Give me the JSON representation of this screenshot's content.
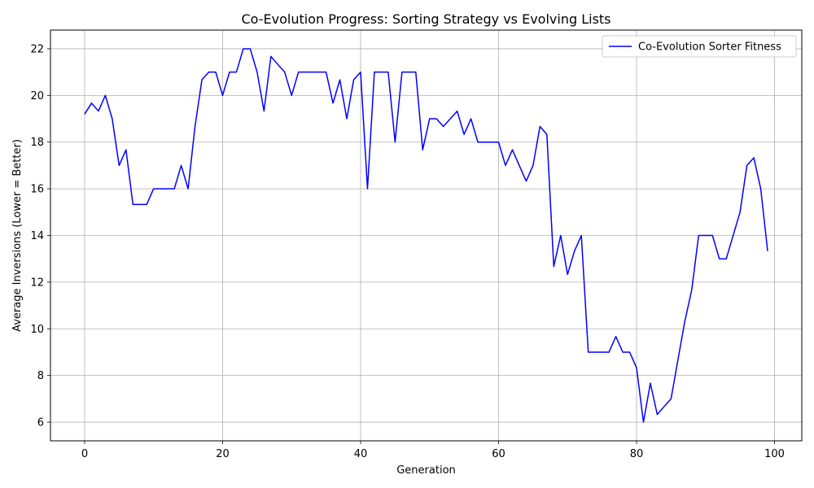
{
  "chart_data": {
    "type": "line",
    "title": "Co-Evolution Progress: Sorting Strategy vs Evolving Lists",
    "xlabel": "Generation",
    "ylabel": "Average Inversions (Lower = Better)",
    "xlim": [
      -4.95,
      103.95
    ],
    "ylim": [
      5.2,
      22.8
    ],
    "xticks": [
      0,
      20,
      40,
      60,
      80,
      100
    ],
    "yticks": [
      6,
      8,
      10,
      12,
      14,
      16,
      18,
      20,
      22
    ],
    "grid": true,
    "legend_position": "top-right",
    "series": [
      {
        "name": "Co-Evolution Sorter Fitness",
        "color": "#0000ff",
        "x": [
          0,
          1,
          2,
          3,
          4,
          5,
          6,
          7,
          8,
          9,
          10,
          11,
          12,
          13,
          14,
          15,
          16,
          17,
          18,
          19,
          20,
          21,
          22,
          23,
          24,
          25,
          26,
          27,
          28,
          29,
          30,
          31,
          32,
          33,
          34,
          35,
          36,
          37,
          38,
          39,
          40,
          41,
          42,
          43,
          44,
          45,
          46,
          47,
          48,
          49,
          50,
          51,
          52,
          53,
          54,
          55,
          56,
          57,
          58,
          59,
          60,
          61,
          62,
          63,
          64,
          65,
          66,
          67,
          68,
          69,
          70,
          71,
          72,
          73,
          74,
          75,
          76,
          77,
          78,
          79,
          80,
          81,
          82,
          83,
          84,
          85,
          86,
          87,
          88,
          89,
          90,
          91,
          92,
          93,
          94,
          95,
          96,
          97,
          98,
          99
        ],
        "y": [
          19.2,
          19.67,
          19.33,
          20,
          19,
          17,
          17.67,
          15.33,
          15.33,
          15.33,
          16,
          16,
          16,
          16,
          17,
          16,
          18.67,
          20.67,
          21,
          21,
          20,
          21,
          21,
          22,
          22,
          21,
          19.33,
          21.67,
          21.33,
          21,
          20,
          21,
          21,
          21,
          21,
          21,
          19.67,
          20.67,
          19,
          20.67,
          21,
          16,
          21,
          21,
          21,
          18,
          21,
          21,
          21,
          17.67,
          19,
          19,
          18.67,
          19,
          19.33,
          18.33,
          19,
          18,
          18,
          18,
          18,
          17,
          17.67,
          17,
          16.33,
          17,
          18.67,
          18.33,
          12.67,
          14,
          12.33,
          13.33,
          14,
          9,
          9,
          9,
          9,
          9.67,
          9,
          9,
          8.33,
          6,
          7.67,
          6.33,
          6.67,
          7,
          8.67,
          10.33,
          11.67,
          14,
          14,
          14,
          13,
          13,
          14,
          15,
          17,
          17.33,
          16,
          13.33
        ]
      }
    ]
  }
}
